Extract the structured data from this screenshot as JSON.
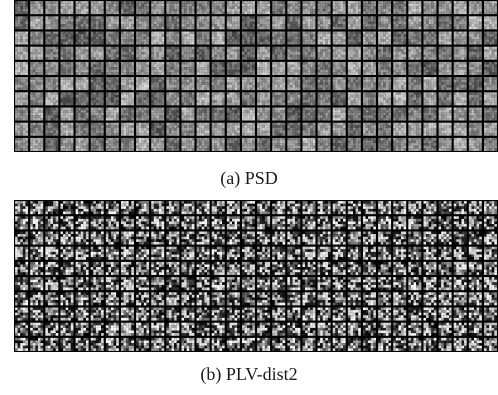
{
  "figure": {
    "panels": [
      {
        "id": "a",
        "caption": "(a) PSD",
        "grid_columns": 32,
        "grid_rows": 10,
        "filter_pixels_per_side": 5,
        "tile_style": "smooth, low-contrast grey"
      },
      {
        "id": "b",
        "caption": "(b) PLV-dist2",
        "grid_columns": 32,
        "grid_rows": 10,
        "filter_pixels_per_side": 5,
        "tile_style": "high-contrast, noisy black/white"
      }
    ]
  }
}
